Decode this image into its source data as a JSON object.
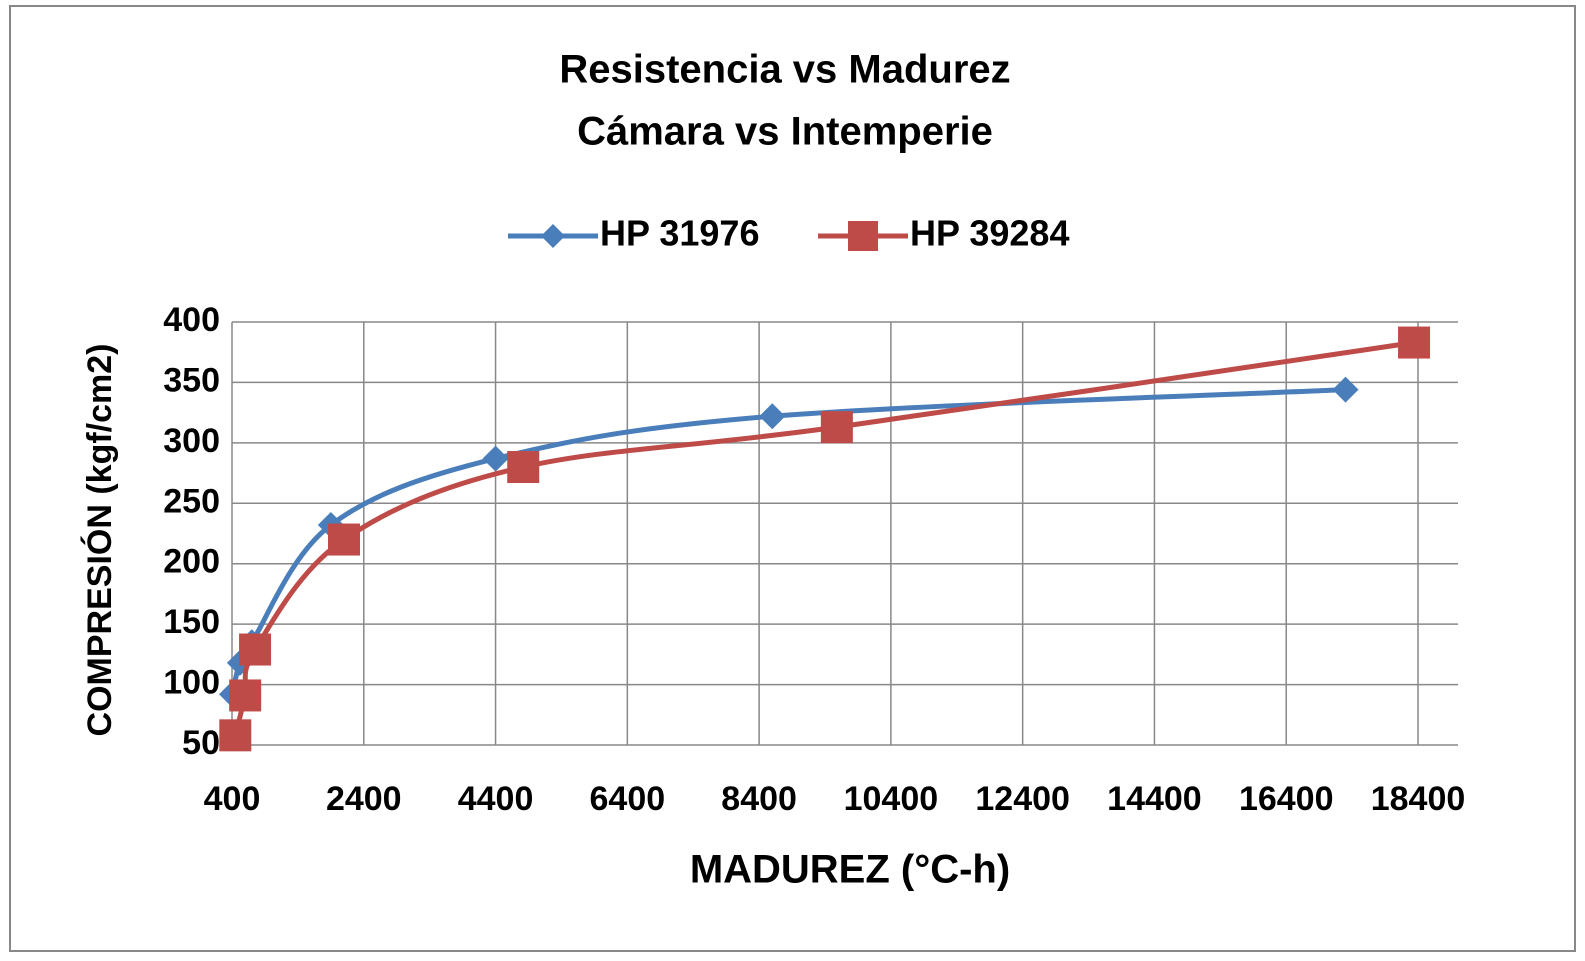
{
  "chart_data": {
    "type": "line",
    "title": "Resistencia  vs  Madurez",
    "subtitle": "Cámara vs Intemperie",
    "x_label": "MADUREZ  (°C-h)",
    "y_label": "COMPRESIÓN  (kgf/cm2)",
    "legend": "top",
    "grid": true,
    "smooth": true,
    "xlim": [
      400,
      18400
    ],
    "xticks": [
      400,
      2400,
      4400,
      6400,
      8400,
      10400,
      12400,
      14400,
      16400,
      18400
    ],
    "ylim": [
      50,
      400
    ],
    "yticks": [
      50,
      100,
      150,
      200,
      250,
      300,
      350,
      400
    ],
    "series": [
      {
        "name": "HP 31976",
        "color": "#4a7ebb",
        "marker": "diamond",
        "x": [
          400,
          520,
          700,
          1900,
          4400,
          8600,
          17300
        ],
        "values": [
          92,
          118,
          135,
          232,
          287,
          322,
          344
        ]
      },
      {
        "name": "HP 39284",
        "color": "#be4b48",
        "marker": "square",
        "x": [
          450,
          600,
          750,
          2100,
          4820,
          9580,
          18340
        ],
        "values": [
          58,
          91,
          129,
          220,
          280,
          313,
          383
        ]
      }
    ]
  }
}
